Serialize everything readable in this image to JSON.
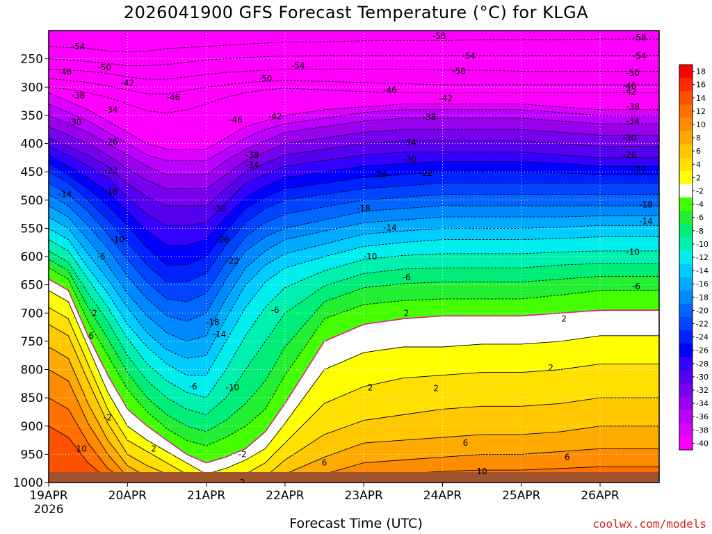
{
  "chart_data": {
    "type": "heatmap",
    "title": "2026041900 GFS Forecast Temperature (°C) for KLGA",
    "xlabel": "Forecast Time (UTC)",
    "ylabel": "",
    "credit": "coolwx.com/models",
    "x_ticks": [
      {
        "label": "19APR",
        "sub": "2026",
        "hour": 0
      },
      {
        "label": "20APR",
        "sub": "",
        "hour": 24
      },
      {
        "label": "21APR",
        "sub": "",
        "hour": 48
      },
      {
        "label": "22APR",
        "sub": "",
        "hour": 72
      },
      {
        "label": "23APR",
        "sub": "",
        "hour": 96
      },
      {
        "label": "24APR",
        "sub": "",
        "hour": 120
      },
      {
        "label": "25APR",
        "sub": "",
        "hour": 144
      },
      {
        "label": "26APR",
        "sub": "",
        "hour": 168
      }
    ],
    "xlim_hours": [
      0,
      186
    ],
    "y_axis": "pressure (hPa), reversed",
    "ylim": [
      1000,
      200
    ],
    "y_ticks": [
      250,
      300,
      350,
      400,
      450,
      500,
      550,
      600,
      650,
      700,
      750,
      800,
      850,
      900,
      950,
      1000
    ],
    "grid": true,
    "legend": "colorbar right",
    "colorbar": {
      "labels": [
        "18",
        "16",
        "14",
        "12",
        "10",
        "8",
        "6",
        "4",
        "2",
        "-2",
        "-4",
        "-6",
        "-8",
        "-10",
        "-12",
        "-14",
        "-16",
        "-18",
        "-20",
        "-22",
        "-24",
        "-26",
        "-28",
        "-30",
        "-32",
        "-34",
        "-36",
        "-38",
        "-40"
      ],
      "colors": [
        "#ff0000",
        "#ff2a00",
        "#ff5200",
        "#ff7000",
        "#ff8c00",
        "#ffaa00",
        "#ffc800",
        "#ffe000",
        "#ffff00",
        "#ffffff",
        "#44ff00",
        "#22ee33",
        "#00ee77",
        "#00f0b0",
        "#00eeee",
        "#00ccff",
        "#00aaff",
        "#0088ff",
        "#0066ff",
        "#0044ff",
        "#0022ff",
        "#0000ff",
        "#3300ff",
        "#5500ee",
        "#7700ee",
        "#9900ee",
        "#bb00ff",
        "#dd00ff",
        "#ff00ff"
      ]
    },
    "contour_labels": [
      {
        "t": "-58",
        "h": 119,
        "p": 210
      },
      {
        "t": "-58",
        "h": 180,
        "p": 212
      },
      {
        "t": "-54",
        "h": 9,
        "p": 228
      },
      {
        "t": "-54",
        "h": 76,
        "p": 262
      },
      {
        "t": "-54",
        "h": 128,
        "p": 245
      },
      {
        "t": "-54",
        "h": 180,
        "p": 245
      },
      {
        "t": "-50",
        "h": 17,
        "p": 265
      },
      {
        "t": "-50",
        "h": 66,
        "p": 285
      },
      {
        "t": "-50",
        "h": 125,
        "p": 272
      },
      {
        "t": "-50",
        "h": 178,
        "p": 275
      },
      {
        "t": "-46",
        "h": 5,
        "p": 273
      },
      {
        "t": "-46",
        "h": 38,
        "p": 318
      },
      {
        "t": "-46",
        "h": 104,
        "p": 305
      },
      {
        "t": "-46",
        "h": 177,
        "p": 298
      },
      {
        "t": "-46",
        "h": 57,
        "p": 358
      },
      {
        "t": "-42",
        "h": 24,
        "p": 293
      },
      {
        "t": "-42",
        "h": 69,
        "p": 352
      },
      {
        "t": "-42",
        "h": 121,
        "p": 320
      },
      {
        "t": "-42",
        "h": 177,
        "p": 308
      },
      {
        "t": "-38",
        "h": 9,
        "p": 315
      },
      {
        "t": "-38",
        "h": 62,
        "p": 420
      },
      {
        "t": "-38",
        "h": 116,
        "p": 353
      },
      {
        "t": "-38",
        "h": 178,
        "p": 335
      },
      {
        "t": "-34",
        "h": 19,
        "p": 340
      },
      {
        "t": "-34",
        "h": 62,
        "p": 438
      },
      {
        "t": "-34",
        "h": 110,
        "p": 398
      },
      {
        "t": "-34",
        "h": 178,
        "p": 360
      },
      {
        "t": "-30",
        "h": 8,
        "p": 362
      },
      {
        "t": "-30",
        "h": 52,
        "p": 515
      },
      {
        "t": "-30",
        "h": 110,
        "p": 428
      },
      {
        "t": "-30",
        "h": 177,
        "p": 390
      },
      {
        "t": "-26",
        "h": 19,
        "p": 397
      },
      {
        "t": "-26",
        "h": 53,
        "p": 570
      },
      {
        "t": "-26",
        "h": 101,
        "p": 455
      },
      {
        "t": "-26",
        "h": 177,
        "p": 420
      },
      {
        "t": "-22",
        "h": 19,
        "p": 448
      },
      {
        "t": "-22",
        "h": 56,
        "p": 608
      },
      {
        "t": "-22",
        "h": 115,
        "p": 452
      },
      {
        "t": "-22",
        "h": 180,
        "p": 447
      },
      {
        "t": "-18",
        "h": 19,
        "p": 485
      },
      {
        "t": "-18",
        "h": 50,
        "p": 716
      },
      {
        "t": "-18",
        "h": 96,
        "p": 515
      },
      {
        "t": "-18",
        "h": 182,
        "p": 508
      },
      {
        "t": "-14",
        "h": 5,
        "p": 490
      },
      {
        "t": "-14",
        "h": 52,
        "p": 738
      },
      {
        "t": "-14",
        "h": 104,
        "p": 549
      },
      {
        "t": "-14",
        "h": 182,
        "p": 538
      },
      {
        "t": "-10",
        "h": 21,
        "p": 570
      },
      {
        "t": "-10",
        "h": 56,
        "p": 832
      },
      {
        "t": "-10",
        "h": 98,
        "p": 600
      },
      {
        "t": "-10",
        "h": 178,
        "p": 592
      },
      {
        "t": "-6",
        "h": 16,
        "p": 600
      },
      {
        "t": "-6",
        "h": 44,
        "p": 830
      },
      {
        "t": "-6",
        "h": 69,
        "p": 695
      },
      {
        "t": "-6",
        "h": 109,
        "p": 637
      },
      {
        "t": "-6",
        "h": 179,
        "p": 653
      },
      {
        "t": "-2",
        "h": 18,
        "p": 885
      },
      {
        "t": "-2",
        "h": 59,
        "p": 950
      },
      {
        "t": "2",
        "h": 14,
        "p": 700
      },
      {
        "t": "2",
        "h": 32,
        "p": 940
      },
      {
        "t": "2",
        "h": 59,
        "p": 1000
      },
      {
        "t": "2",
        "h": 98,
        "p": 832
      },
      {
        "t": "2",
        "h": 109,
        "p": 700
      },
      {
        "t": "2",
        "h": 118,
        "p": 833
      },
      {
        "t": "2",
        "h": 153,
        "p": 797
      },
      {
        "t": "2",
        "h": 157,
        "p": 710
      },
      {
        "t": "6",
        "h": 13,
        "p": 740
      },
      {
        "t": "6",
        "h": 84,
        "p": 965
      },
      {
        "t": "6",
        "h": 127,
        "p": 930
      },
      {
        "t": "6",
        "h": 158,
        "p": 955
      },
      {
        "t": "10",
        "h": 10,
        "p": 940
      },
      {
        "t": "10",
        "h": 132,
        "p": 980
      }
    ]
  }
}
